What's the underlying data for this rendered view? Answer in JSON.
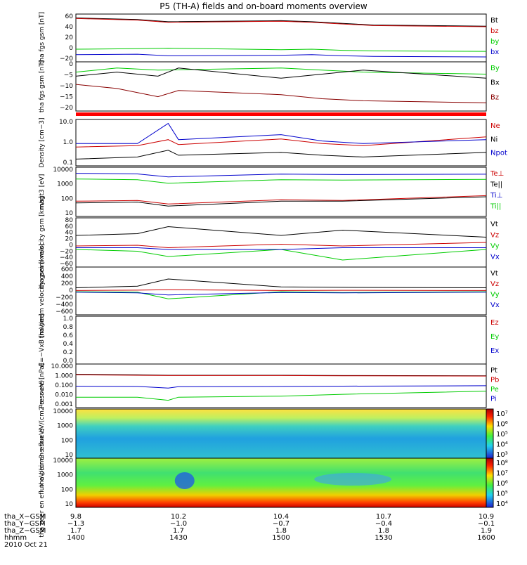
{
  "title": "P5 (TH-A) fields and on-board moments overview",
  "chart_data": [
    {
      "type": "line",
      "ylabel": "tha fgs gsm [nT]",
      "yticks": [
        "60",
        "40",
        "20",
        "0",
        "−20"
      ],
      "ylim": [
        -25,
        62
      ],
      "series": [
        {
          "name": "Bt",
          "color": "#000000",
          "x": [
            1400,
            1430,
            1445,
            1500,
            1515,
            1530,
            1545,
            1600
          ],
          "values": [
            55,
            52,
            48,
            50,
            48,
            45,
            42,
            40
          ]
        },
        {
          "name": "bz",
          "color": "#cc0000",
          "x": [
            1400,
            1430,
            1445,
            1500,
            1515,
            1530,
            1545,
            1600
          ],
          "values": [
            54,
            51,
            47,
            49,
            47,
            44,
            41,
            39
          ]
        },
        {
          "name": "by",
          "color": "#00cc00",
          "x": [
            1400,
            1430,
            1445,
            1500,
            1515,
            1530,
            1545,
            1600
          ],
          "values": [
            -2,
            -1,
            0,
            -3,
            -2,
            -4,
            -5,
            -6
          ]
        },
        {
          "name": "bx",
          "color": "#0000cc",
          "x": [
            1400,
            1430,
            1445,
            1500,
            1515,
            1530,
            1545,
            1600
          ],
          "values": [
            -12,
            -11,
            -14,
            -13,
            -12,
            -14,
            -15,
            -16
          ]
        }
      ]
    },
    {
      "type": "line",
      "ylabel": "tha fgs gsm [nT]",
      "yticks": [
        "0",
        "−5",
        "−10",
        "−15",
        "−20"
      ],
      "ylim": [
        -22,
        2
      ],
      "series": [
        {
          "name": "By",
          "color": "#00cc00",
          "x": [
            1400,
            1420,
            1440,
            1500,
            1520,
            1540,
            1600
          ],
          "values": [
            -3,
            -1,
            -2,
            -1,
            -2,
            -3,
            -4
          ]
        },
        {
          "name": "Bx",
          "color": "#000000",
          "x": [
            1400,
            1420,
            1440,
            1450,
            1500,
            1520,
            1540,
            1600
          ],
          "values": [
            -5,
            -3,
            -5,
            -1,
            -6,
            -4,
            -2,
            -6
          ]
        },
        {
          "name": "Bz",
          "color": "#880000",
          "x": [
            1400,
            1420,
            1440,
            1450,
            1500,
            1520,
            1540,
            1600
          ],
          "values": [
            -9,
            -11,
            -15,
            -12,
            -14,
            -16,
            -17,
            -18
          ]
        }
      ]
    },
    {
      "type": "line",
      "scale": "log",
      "ylabel": "Density [cm−3]",
      "yticks": [
        "10.0",
        "1.0",
        "0.1"
      ],
      "ylim": [
        0.1,
        12
      ],
      "series": [
        {
          "name": "Ne",
          "color": "#cc0000",
          "x": [
            1400,
            1430,
            1445,
            1450,
            1500,
            1520,
            1540,
            1600
          ],
          "values": [
            0.7,
            0.8,
            1.5,
            0.9,
            1.6,
            1.0,
            0.8,
            2.0
          ]
        },
        {
          "name": "Ni",
          "color": "#000000",
          "x": [
            1400,
            1430,
            1445,
            1450,
            1500,
            1520,
            1540,
            1600
          ],
          "values": [
            0.2,
            0.25,
            0.5,
            0.3,
            0.4,
            0.3,
            0.25,
            0.4
          ]
        },
        {
          "name": "Npot",
          "color": "#0000cc",
          "x": [
            1400,
            1430,
            1445,
            1450,
            1500,
            1520,
            1540,
            1600
          ],
          "values": [
            1.0,
            1.0,
            8.0,
            1.5,
            2.5,
            1.3,
            1.0,
            1.5
          ]
        }
      ]
    },
    {
      "type": "line",
      "scale": "log",
      "ylabel": "magt3 [eV]",
      "yticks": [
        "10000",
        "1000",
        "100",
        "10"
      ],
      "ylim": [
        10,
        12000
      ],
      "series": [
        {
          "name": "Te⊥",
          "color": "#cc0000",
          "x": [
            1400,
            1430,
            1445,
            1500,
            1530,
            1600
          ],
          "values": [
            90,
            100,
            60,
            110,
            100,
            200
          ]
        },
        {
          "name": "Te||",
          "color": "#000000",
          "x": [
            1400,
            1430,
            1445,
            1500,
            1530,
            1600
          ],
          "values": [
            70,
            80,
            45,
            90,
            90,
            170
          ]
        },
        {
          "name": "Ti⊥",
          "color": "#0000cc",
          "x": [
            1400,
            1430,
            1445,
            1500,
            1530,
            1600
          ],
          "values": [
            5000,
            4600,
            3000,
            4500,
            4200,
            4400
          ]
        },
        {
          "name": "Ti||",
          "color": "#00cc00",
          "x": [
            1400,
            1430,
            1445,
            1500,
            1530,
            1600
          ],
          "values": [
            2200,
            2000,
            1200,
            2000,
            1900,
            2100
          ]
        }
      ]
    },
    {
      "type": "line",
      "ylabel": "tha peim velocity gsm [km/s]",
      "yticks": [
        "80",
        "60",
        "40",
        "20",
        "0",
        "−20",
        "−40",
        "−60"
      ],
      "ylim": [
        -60,
        80
      ],
      "series": [
        {
          "name": "Vt",
          "color": "#000000",
          "x": [
            1400,
            1430,
            1445,
            1500,
            1530,
            1600
          ],
          "values": [
            30,
            35,
            55,
            30,
            45,
            25
          ]
        },
        {
          "name": "Vz",
          "color": "#cc0000",
          "x": [
            1400,
            1430,
            1445,
            1500,
            1530,
            1600
          ],
          "values": [
            0,
            2,
            -5,
            5,
            0,
            10
          ]
        },
        {
          "name": "Vy",
          "color": "#00cc00",
          "x": [
            1400,
            1430,
            1445,
            1500,
            1530,
            1600
          ],
          "values": [
            -10,
            -15,
            -30,
            -10,
            -40,
            -10
          ]
        },
        {
          "name": "Vx",
          "color": "#0000cc",
          "x": [
            1400,
            1430,
            1445,
            1500,
            1530,
            1600
          ],
          "values": [
            -5,
            -5,
            -10,
            -10,
            -5,
            -5
          ]
        }
      ]
    },
    {
      "type": "line",
      "ylabel": "tha peem velocity gsm [km/s]",
      "yticks": [
        "600",
        "400",
        "200",
        "0",
        "−200",
        "−400",
        "−600"
      ],
      "ylim": [
        -600,
        600
      ],
      "series": [
        {
          "name": "Vt",
          "color": "#000000",
          "x": [
            1400,
            1430,
            1445,
            1500,
            1530,
            1600
          ],
          "values": [
            80,
            120,
            300,
            100,
            90,
            80
          ]
        },
        {
          "name": "Vz",
          "color": "#cc0000",
          "x": [
            1400,
            1430,
            1445,
            1500,
            1530,
            1600
          ],
          "values": [
            10,
            20,
            30,
            10,
            15,
            10
          ]
        },
        {
          "name": "Vy",
          "color": "#00cc00",
          "x": [
            1400,
            1430,
            1445,
            1500,
            1530,
            1600
          ],
          "values": [
            -20,
            -30,
            -200,
            -20,
            -40,
            -20
          ]
        },
        {
          "name": "Vx",
          "color": "#0000cc",
          "x": [
            1400,
            1430,
            1445,
            1500,
            1530,
            1600
          ],
          "values": [
            -30,
            -50,
            -100,
            -40,
            -50,
            -30
          ]
        }
      ]
    },
    {
      "type": "line",
      "ylabel": "E=−VxB [mV/m]",
      "yticks": [
        "1.0",
        "0.8",
        "0.6",
        "0.4",
        "0.2",
        "0.0"
      ],
      "ylim": [
        0,
        1
      ],
      "series": [
        {
          "name": "Ez",
          "color": "#cc0000",
          "x": [],
          "values": []
        },
        {
          "name": "Ey",
          "color": "#00cc00",
          "x": [],
          "values": []
        },
        {
          "name": "Ex",
          "color": "#0000cc",
          "x": [],
          "values": []
        }
      ]
    },
    {
      "type": "line",
      "scale": "log",
      "ylabel": "Pressure [nPa]",
      "yticks": [
        "10.000",
        "1.000",
        "0.100",
        "0.010",
        "0.001"
      ],
      "ylim": [
        0.0008,
        12
      ],
      "series": [
        {
          "name": "Pt",
          "color": "#000000",
          "x": [
            1400,
            1430,
            1445,
            1500,
            1530,
            1600
          ],
          "values": [
            1.2,
            1.1,
            1.0,
            1.0,
            0.95,
            0.9
          ]
        },
        {
          "name": "Pb",
          "color": "#cc0000",
          "x": [
            1400,
            1430,
            1445,
            1500,
            1530,
            1600
          ],
          "values": [
            1.1,
            1.0,
            0.95,
            0.95,
            0.9,
            0.85
          ]
        },
        {
          "name": "Pe",
          "color": "#00cc00",
          "x": [
            1400,
            1430,
            1445,
            1450,
            1500,
            1530,
            1600
          ],
          "values": [
            0.008,
            0.008,
            0.004,
            0.008,
            0.01,
            0.015,
            0.03
          ]
        },
        {
          "name": "Pi",
          "color": "#0000cc",
          "x": [
            1400,
            1430,
            1445,
            1450,
            1500,
            1530,
            1600
          ],
          "values": [
            0.09,
            0.085,
            0.06,
            0.08,
            0.085,
            0.09,
            0.1
          ]
        }
      ]
    },
    {
      "type": "heatmap",
      "ylabel": "tha peir en eflux eV/(cm2-s-sr-eV)",
      "yticks": [
        "10000",
        "1000",
        "100",
        "10"
      ],
      "colorbar": [
        "10⁷",
        "10⁶",
        "10⁵",
        "10⁴",
        "10³"
      ]
    },
    {
      "type": "heatmap",
      "ylabel": "tha peer en eflux eV/(cm2-s-sr-eV)",
      "yticks": [
        "10000",
        "1000",
        "100",
        "10"
      ],
      "colorbar": [
        "10⁸",
        "10⁷",
        "10⁶",
        "10⁵",
        "10⁴"
      ]
    }
  ],
  "orbit": {
    "row_labels": [
      "tha_X−GSM",
      "tha_Y−GSM",
      "tha_Z−GSM",
      "hhmm",
      "2010 Oct 21"
    ],
    "columns": [
      {
        "x": "9.8",
        "y": "−1.3",
        "z": "1.7",
        "t": "1400"
      },
      {
        "x": "10.2",
        "y": "−1.0",
        "z": "1.7",
        "t": "1430"
      },
      {
        "x": "10.4",
        "y": "−0.7",
        "z": "1.8",
        "t": "1500"
      },
      {
        "x": "10.7",
        "y": "−0.4",
        "z": "1.8",
        "t": "1530"
      },
      {
        "x": "10.9",
        "y": "−0.1",
        "z": "1.9",
        "t": "1600"
      }
    ]
  }
}
